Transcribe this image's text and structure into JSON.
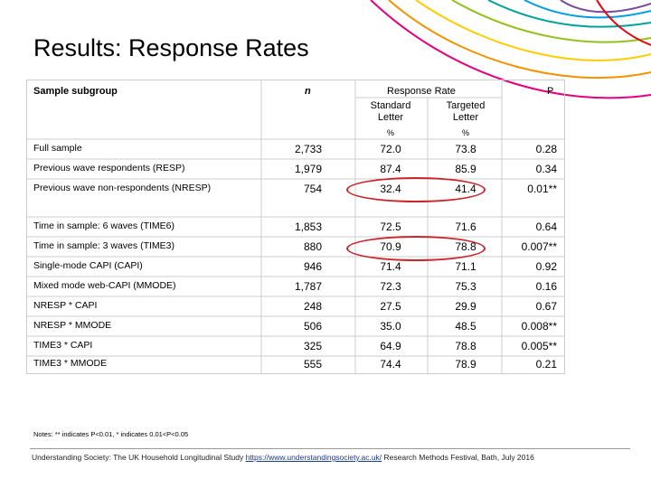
{
  "title": "Results: Response Rates",
  "headers": {
    "subgroup": "Sample subgroup",
    "n": "n",
    "response_rate": "Response Rate",
    "standard_l1": "Standard",
    "standard_l2": "Letter",
    "targeted_l1": "Targeted",
    "targeted_l2": "Letter",
    "pct1": "%",
    "pct2": "%",
    "p": "P"
  },
  "rows": [
    {
      "label": "Full sample",
      "n": "2,733",
      "std": "72.0",
      "tgt": "73.8",
      "p": "0.28"
    },
    {
      "label": "Previous wave respondents (RESP)",
      "n": "1,979",
      "std": "87.4",
      "tgt": "85.9",
      "p": "0.34"
    },
    {
      "label": "Previous wave non-respondents (NRESP)",
      "n": "754",
      "std": "32.4",
      "tgt": "41.4",
      "p": "0.01**"
    },
    {
      "label": "Time in sample: 6 waves (TIME6)",
      "n": "1,853",
      "std": "72.5",
      "tgt": "71.6",
      "p": "0.64"
    },
    {
      "label": "Time in sample: 3 waves (TIME3)",
      "n": "880",
      "std": "70.9",
      "tgt": "78.8",
      "p": "0.007**"
    },
    {
      "label": "Single-mode CAPI (CAPI)",
      "n": "946",
      "std": "71.4",
      "tgt": "71.1",
      "p": "0.92"
    },
    {
      "label": "Mixed mode web-CAPI (MMODE)",
      "n": "1,787",
      "std": "72.3",
      "tgt": "75.3",
      "p": "0.16"
    },
    {
      "label": "NRESP * CAPI",
      "n": "248",
      "std": "27.5",
      "tgt": "29.9",
      "p": "0.67"
    },
    {
      "label": "NRESP * MMODE",
      "n": "506",
      "std": "35.0",
      "tgt": "48.5",
      "p": "0.008**"
    },
    {
      "label": "TIME3 * CAPI",
      "n": "325",
      "std": "64.9",
      "tgt": "78.8",
      "p": "0.005**"
    },
    {
      "label": "TIME3 * MMODE",
      "n": "555",
      "std": "74.4",
      "tgt": "78.9",
      "p": "0.21"
    }
  ],
  "notes": "Notes: ** indicates P<0.01, * indicates 0.01<P<0.05",
  "footer": {
    "left": "Understanding Society: The UK Household Longitudinal Study",
    "link": "https://www.understandingsociety.ac.uk/",
    "right": "Research Methods Festival, Bath, July 2016"
  },
  "colors": {
    "highlight": "#c9252b",
    "grid_line": "#cccccc",
    "deco": [
      "#e5007e",
      "#f39200",
      "#ffcc00",
      "#95c11f",
      "#00a19a",
      "#009fe3",
      "#7b4a9b",
      "#e30613"
    ]
  }
}
